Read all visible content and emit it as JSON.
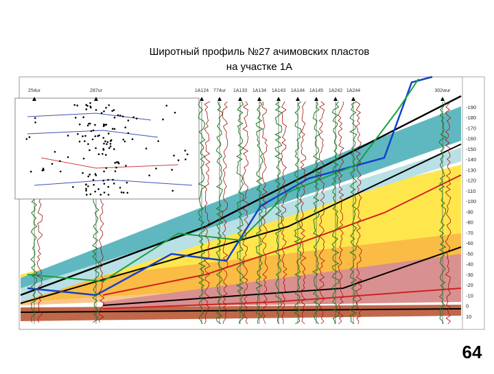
{
  "header": {
    "title_line1": "Широтный профиль №27 ачимовских пластов",
    "title_line2": "на участке 1А"
  },
  "wells": [
    "254ur",
    "287ur",
    "1A124",
    "774ur",
    "1A133",
    "1A134",
    "1A143",
    "1A144",
    "1A145",
    "1A242",
    "1A244",
    "302wur"
  ],
  "scale": [
    -190,
    -180,
    -170,
    -160,
    -150,
    -140,
    -130,
    -120,
    -110,
    -100,
    -90,
    -80,
    -70,
    -60,
    -50,
    -40,
    -30,
    -20,
    -10,
    0,
    10
  ],
  "page_number": "64"
}
